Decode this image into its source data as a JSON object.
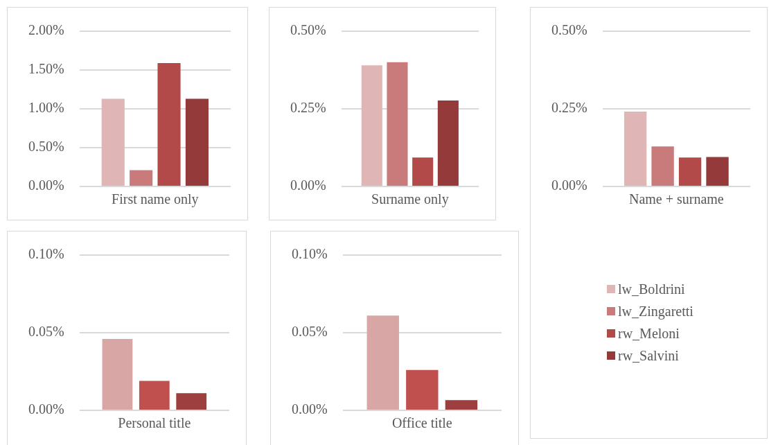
{
  "chart_data": [
    {
      "type": "bar",
      "categories": [
        "First name only"
      ],
      "series": [
        {
          "color": "#dfb5b5",
          "values": [
            1.13
          ]
        },
        {
          "color": "#c97b7b",
          "values": [
            0.21
          ]
        },
        {
          "color": "#b14a48",
          "values": [
            1.59
          ]
        },
        {
          "color": "#953a3a",
          "values": [
            1.13
          ]
        }
      ],
      "ylim": [
        0,
        2
      ],
      "yticks": [
        {
          "value": 0,
          "label": "0.00%"
        },
        {
          "value": 0.5,
          "label": "0.50%"
        },
        {
          "value": 1,
          "label": "1.00%"
        },
        {
          "value": 1.5,
          "label": "1.50%"
        },
        {
          "value": 2,
          "label": "2.00%"
        }
      ],
      "grid": "y"
    },
    {
      "type": "bar",
      "categories": [
        "Surname only"
      ],
      "series": [
        {
          "color": "#dfb5b5",
          "values": [
            0.39
          ]
        },
        {
          "color": "#c97b7b",
          "values": [
            0.4
          ]
        },
        {
          "color": "#b14a48",
          "values": [
            0.093
          ]
        },
        {
          "color": "#953a3a",
          "values": [
            0.277
          ]
        }
      ],
      "ylim": [
        0,
        0.5
      ],
      "yticks": [
        {
          "value": 0,
          "label": "0.00%"
        },
        {
          "value": 0.25,
          "label": "0.25%"
        },
        {
          "value": 0.5,
          "label": "0.50%"
        }
      ],
      "grid": "y"
    },
    {
      "type": "bar",
      "categories": [
        "Name + surname"
      ],
      "series": [
        {
          "name": "lw_Boldrini",
          "color": "#dfb5b5",
          "values": [
            0.241
          ]
        },
        {
          "name": "lw_Zingaretti",
          "color": "#c97b7b",
          "values": [
            0.129
          ]
        },
        {
          "name": "rw_Meloni",
          "color": "#b14a48",
          "values": [
            0.093
          ]
        },
        {
          "name": "rw_Salvini",
          "color": "#953a3a",
          "values": [
            0.095
          ]
        }
      ],
      "ylim": [
        0,
        0.5
      ],
      "yticks": [
        {
          "value": 0,
          "label": "0.00%"
        },
        {
          "value": 0.25,
          "label": "0.25%"
        },
        {
          "value": 0.5,
          "label": "0.50%"
        }
      ],
      "grid": "y",
      "legend": "bottom"
    },
    {
      "type": "bar",
      "categories": [
        "Personal title"
      ],
      "series": [
        {
          "color": "#d9a6a6",
          "values": [
            0.046
          ]
        },
        {
          "color": "#c0504d",
          "values": [
            0.019
          ]
        },
        {
          "color": "#9e3f3f",
          "values": [
            0.011
          ]
        }
      ],
      "ylim": [
        0,
        0.1
      ],
      "yticks": [
        {
          "value": 0,
          "label": "0.00%"
        },
        {
          "value": 0.05,
          "label": "0.05%"
        },
        {
          "value": 0.1,
          "label": "0.10%"
        }
      ],
      "grid": "y"
    },
    {
      "type": "bar",
      "categories": [
        "Office title"
      ],
      "series": [
        {
          "color": "#d9a6a6",
          "values": [
            0.061
          ]
        },
        {
          "color": "#c0504d",
          "values": [
            0.026
          ]
        },
        {
          "color": "#9e3f3f",
          "values": [
            0.0066
          ]
        }
      ],
      "ylim": [
        0,
        0.1
      ],
      "yticks": [
        {
          "value": 0,
          "label": "0.00%"
        },
        {
          "value": 0.05,
          "label": "0.05%"
        },
        {
          "value": 0.1,
          "label": "0.10%"
        }
      ],
      "grid": "y"
    }
  ]
}
